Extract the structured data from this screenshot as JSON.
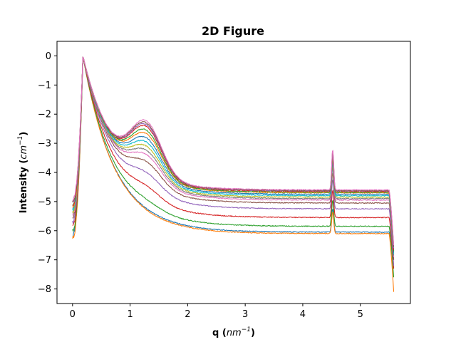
{
  "chart_data": {
    "type": "line",
    "title": "2D Figure",
    "xlabel": "q",
    "xlabel_unit_base": "nm",
    "xlabel_unit_exp": "−1",
    "ylabel": "Intensity",
    "ylabel_unit_base": "cm",
    "ylabel_unit_exp": "−1",
    "xlim": [
      -0.27,
      5.87
    ],
    "ylim": [
      -8.5,
      0.5
    ],
    "xticks": [
      0,
      1,
      2,
      3,
      4,
      5
    ],
    "yticks": [
      0,
      -1,
      -2,
      -3,
      -4,
      -5,
      -6,
      -7,
      -8
    ],
    "x_tick_labels": [
      "0",
      "1",
      "2",
      "3",
      "4",
      "5"
    ],
    "y_tick_labels": [
      "0",
      "−1",
      "−2",
      "−3",
      "−4",
      "−5",
      "−6",
      "−7",
      "−8"
    ],
    "grid": false,
    "legend": "none",
    "x_range": [
      0.0,
      5.58
    ],
    "peak_main": {
      "q": 0.18,
      "value": 0.0
    },
    "peak_bragg": {
      "q": 4.52
    },
    "series": [
      {
        "color": "#1f77b4",
        "start": -6.15,
        "hump": 0.0,
        "plateau": -6.05,
        "bragg": 0.8,
        "end": -7.0
      },
      {
        "color": "#ff7f0e",
        "start": -6.25,
        "hump": 0.0,
        "plateau": -6.1,
        "bragg": 0.75,
        "end": -8.1
      },
      {
        "color": "#2ca02c",
        "start": -6.0,
        "hump": 0.15,
        "plateau": -5.85,
        "bragg": 0.9,
        "end": -7.6
      },
      {
        "color": "#d62728",
        "start": -5.85,
        "hump": 0.35,
        "plateau": -5.55,
        "bragg": 0.95,
        "end": -7.3
      },
      {
        "color": "#9467bd",
        "start": -5.7,
        "hump": 0.55,
        "plateau": -5.25,
        "bragg": 1.0,
        "end": -7.2
      },
      {
        "color": "#8c564b",
        "start": -5.55,
        "hump": 0.75,
        "plateau": -5.05,
        "bragg": 1.05,
        "end": -7.0
      },
      {
        "color": "#e377c2",
        "start": -5.45,
        "hump": 0.9,
        "plateau": -4.95,
        "bragg": 1.1,
        "end": -6.9
      },
      {
        "color": "#7f7f7f",
        "start": -5.4,
        "hump": 1.0,
        "plateau": -4.9,
        "bragg": 1.1,
        "end": -6.85
      },
      {
        "color": "#bcbd22",
        "start": -5.35,
        "hump": 1.1,
        "plateau": -4.85,
        "bragg": 1.15,
        "end": -6.8
      },
      {
        "color": "#17becf",
        "start": -5.3,
        "hump": 1.2,
        "plateau": -4.8,
        "bragg": 1.15,
        "end": -6.8
      },
      {
        "color": "#1f77b4",
        "start": -5.25,
        "hump": 1.3,
        "plateau": -4.75,
        "bragg": 1.2,
        "end": -6.75
      },
      {
        "color": "#ff7f0e",
        "start": -5.2,
        "hump": 1.4,
        "plateau": -4.7,
        "bragg": 1.2,
        "end": -6.7
      },
      {
        "color": "#2ca02c",
        "start": -5.15,
        "hump": 1.5,
        "plateau": -4.68,
        "bragg": 1.25,
        "end": -6.7
      },
      {
        "color": "#d62728",
        "start": -5.1,
        "hump": 1.6,
        "plateau": -4.65,
        "bragg": 1.3,
        "end": -6.65
      },
      {
        "color": "#9467bd",
        "start": -5.05,
        "hump": 1.65,
        "plateau": -4.63,
        "bragg": 1.3,
        "end": -6.6
      },
      {
        "color": "#8c564b",
        "start": -5.0,
        "hump": 1.7,
        "plateau": -4.62,
        "bragg": 1.35,
        "end": -6.55
      },
      {
        "color": "#e377c2",
        "start": -4.95,
        "hump": 1.75,
        "plateau": -4.6,
        "bragg": 1.4,
        "end": -6.5
      }
    ]
  }
}
